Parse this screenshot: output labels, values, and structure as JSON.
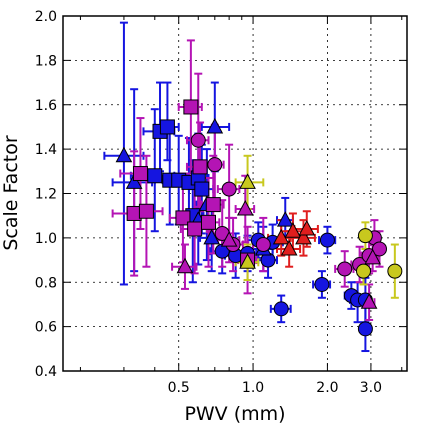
{
  "chart_data": {
    "type": "scatter",
    "title": "",
    "xlabel": "PWV (mm)",
    "ylabel": "Scale Factor",
    "xscale": "log",
    "xlim": [
      0.17,
      4.2
    ],
    "ylim": [
      0.4,
      2.0
    ],
    "xticks": [
      {
        "value": 0.5,
        "label": "0.5"
      },
      {
        "value": 1.0,
        "label": "1.0"
      },
      {
        "value": 2.0,
        "label": "2.0"
      },
      {
        "value": 3.0,
        "label": "3.0"
      }
    ],
    "yticks": [
      {
        "value": 0.4,
        "label": "0.4"
      },
      {
        "value": 0.6,
        "label": "0.6"
      },
      {
        "value": 0.8,
        "label": "0.8"
      },
      {
        "value": 1.0,
        "label": "1.0"
      },
      {
        "value": 1.2,
        "label": "1.2"
      },
      {
        "value": 1.4,
        "label": "1.4"
      },
      {
        "value": 1.6,
        "label": "1.6"
      },
      {
        "value": 1.8,
        "label": "1.8"
      },
      {
        "value": 2.0,
        "label": "2.0"
      }
    ],
    "grid": true,
    "legend": "none",
    "colors": {
      "blue": "#1515e0",
      "magenta": "#b414b4",
      "red": "#e01e1e",
      "yellow": "#c8c81e",
      "edge": "#000000"
    },
    "series": [
      {
        "color_key": "blue",
        "points": [
          {
            "x": 0.42,
            "y": 1.48,
            "marker": "square",
            "xerr": [
              0.06,
              0.06
            ],
            "yerr": [
              0.18,
              0.22
            ]
          },
          {
            "x": 0.45,
            "y": 1.5,
            "marker": "square",
            "xerr": [
              0.05,
              0.05
            ],
            "yerr": [
              0.15,
              0.2
            ]
          },
          {
            "x": 0.4,
            "y": 1.28,
            "marker": "square",
            "xerr": [
              0.08,
              0.08
            ],
            "yerr": [
              0.25,
              0.3
            ]
          },
          {
            "x": 0.46,
            "y": 1.26,
            "marker": "square",
            "xerr": [
              0.06,
              0.06
            ],
            "yerr": [
              0.2,
              0.25
            ]
          },
          {
            "x": 0.5,
            "y": 1.26,
            "marker": "square",
            "xerr": [
              0.07,
              0.07
            ],
            "yerr": [
              0.2,
              0.2
            ]
          },
          {
            "x": 0.55,
            "y": 1.25,
            "marker": "square",
            "xerr": [
              0.06,
              0.06
            ],
            "yerr": [
              0.18,
              0.2
            ]
          },
          {
            "x": 0.6,
            "y": 1.27,
            "marker": "square",
            "xerr": [
              0.06,
              0.06
            ],
            "yerr": [
              0.2,
              0.2
            ]
          },
          {
            "x": 0.62,
            "y": 1.22,
            "marker": "square",
            "xerr": [
              0.07,
              0.07
            ],
            "yerr": [
              0.2,
              0.2
            ]
          },
          {
            "x": 0.57,
            "y": 1.1,
            "marker": "square",
            "xerr": [
              0.06,
              0.06
            ],
            "yerr": [
              0.3,
              0.25
            ]
          },
          {
            "x": 0.3,
            "y": 1.37,
            "marker": "triangle",
            "xerr": [
              0.05,
              0.06
            ],
            "yerr": [
              0.58,
              0.6
            ]
          },
          {
            "x": 0.33,
            "y": 1.25,
            "marker": "triangle",
            "xerr": [
              0.06,
              0.06
            ],
            "yerr": [
              0.4,
              0.42
            ]
          },
          {
            "x": 0.7,
            "y": 1.5,
            "marker": "triangle",
            "xerr": [
              0.08,
              0.1
            ],
            "yerr": [
              0.2,
              0.2
            ]
          },
          {
            "x": 0.65,
            "y": 1.15,
            "marker": "triangle",
            "xerr": [
              0.06,
              0.06
            ],
            "yerr": [
              0.25,
              0.25
            ]
          },
          {
            "x": 0.6,
            "y": 1.08,
            "marker": "triangle",
            "xerr": [
              0.06,
              0.06
            ],
            "yerr": [
              0.2,
              0.2
            ]
          },
          {
            "x": 0.68,
            "y": 1.0,
            "marker": "triangle",
            "xerr": [
              0.07,
              0.07
            ],
            "yerr": [
              0.15,
              0.15
            ]
          },
          {
            "x": 0.75,
            "y": 0.94,
            "marker": "circle",
            "xerr": [
              0.08,
              0.08
            ],
            "yerr": [
              0.1,
              0.1
            ]
          },
          {
            "x": 0.85,
            "y": 0.92,
            "marker": "circle",
            "xerr": [
              0.08,
              0.08
            ],
            "yerr": [
              0.1,
              0.1
            ]
          },
          {
            "x": 0.95,
            "y": 0.93,
            "marker": "circle",
            "xerr": [
              0.08,
              0.08
            ],
            "yerr": [
              0.08,
              0.08
            ]
          },
          {
            "x": 1.05,
            "y": 0.99,
            "marker": "circle",
            "xerr": [
              0.1,
              0.1
            ],
            "yerr": [
              0.08,
              0.08
            ]
          },
          {
            "x": 1.2,
            "y": 0.98,
            "marker": "circle",
            "xerr": [
              0.12,
              0.12
            ],
            "yerr": [
              0.08,
              0.08
            ]
          },
          {
            "x": 1.15,
            "y": 0.9,
            "marker": "circle",
            "xerr": [
              0.1,
              0.1
            ],
            "yerr": [
              0.08,
              0.08
            ]
          },
          {
            "x": 1.3,
            "y": 0.68,
            "marker": "circle",
            "xerr": [
              0.12,
              0.12
            ],
            "yerr": [
              0.06,
              0.06
            ]
          },
          {
            "x": 1.35,
            "y": 1.08,
            "marker": "triangle",
            "xerr": [
              0.1,
              0.1
            ],
            "yerr": [
              0.1,
              0.1
            ]
          },
          {
            "x": 1.1,
            "y": 0.95,
            "marker": "triangle",
            "xerr": [
              0.1,
              0.1
            ],
            "yerr": [
              0.1,
              0.1
            ]
          },
          {
            "x": 2.0,
            "y": 0.99,
            "marker": "circle",
            "xerr": [
              0.15,
              0.15
            ],
            "yerr": [
              0.06,
              0.06
            ]
          },
          {
            "x": 1.9,
            "y": 0.79,
            "marker": "circle",
            "xerr": [
              0.15,
              0.15
            ],
            "yerr": [
              0.06,
              0.06
            ]
          },
          {
            "x": 2.5,
            "y": 0.74,
            "marker": "circle",
            "xerr": [
              0.15,
              0.15
            ],
            "yerr": [
              0.06,
              0.06
            ]
          },
          {
            "x": 2.65,
            "y": 0.72,
            "marker": "circle",
            "xerr": [
              0.18,
              0.18
            ],
            "yerr": [
              0.1,
              0.08
            ]
          },
          {
            "x": 2.85,
            "y": 0.72,
            "marker": "circle",
            "xerr": [
              0.15,
              0.15
            ],
            "yerr": [
              0.1,
              0.1
            ]
          },
          {
            "x": 2.85,
            "y": 0.59,
            "marker": "circle",
            "xerr": [
              0.1,
              0.1
            ],
            "yerr": [
              0.1,
              0.1
            ]
          }
        ]
      },
      {
        "color_key": "magenta",
        "points": [
          {
            "x": 0.56,
            "y": 1.59,
            "marker": "square",
            "xerr": [
              0.06,
              0.06
            ],
            "yerr": [
              0.3,
              0.3
            ]
          },
          {
            "x": 0.6,
            "y": 1.44,
            "marker": "circle",
            "xerr": [
              0.06,
              0.06
            ],
            "yerr": [
              0.3,
              0.3
            ]
          },
          {
            "x": 0.61,
            "y": 1.32,
            "marker": "square",
            "xerr": [
              0.07,
              0.07
            ],
            "yerr": [
              0.2,
              0.2
            ]
          },
          {
            "x": 0.7,
            "y": 1.33,
            "marker": "circle",
            "xerr": [
              0.06,
              0.06
            ],
            "yerr": [
              0.18,
              0.18
            ]
          },
          {
            "x": 0.35,
            "y": 1.29,
            "marker": "square",
            "xerr": [
              0.06,
              0.06
            ],
            "yerr": [
              0.25,
              0.25
            ]
          },
          {
            "x": 0.33,
            "y": 1.11,
            "marker": "square",
            "xerr": [
              0.06,
              0.06
            ],
            "yerr": [
              0.28,
              0.28
            ]
          },
          {
            "x": 0.37,
            "y": 1.12,
            "marker": "square",
            "xerr": [
              0.06,
              0.06
            ],
            "yerr": [
              0.25,
              0.25
            ]
          },
          {
            "x": 0.52,
            "y": 1.09,
            "marker": "square",
            "xerr": [
              0.06,
              0.06
            ],
            "yerr": [
              0.2,
              0.2
            ]
          },
          {
            "x": 0.58,
            "y": 1.04,
            "marker": "square",
            "xerr": [
              0.07,
              0.07
            ],
            "yerr": [
              0.2,
              0.2
            ]
          },
          {
            "x": 0.66,
            "y": 1.07,
            "marker": "square",
            "xerr": [
              0.07,
              0.07
            ],
            "yerr": [
              0.2,
              0.2
            ]
          },
          {
            "x": 0.69,
            "y": 1.15,
            "marker": "square",
            "xerr": [
              0.07,
              0.07
            ],
            "yerr": [
              0.22,
              0.22
            ]
          },
          {
            "x": 0.8,
            "y": 1.22,
            "marker": "circle",
            "xerr": [
              0.08,
              0.08
            ],
            "yerr": [
              0.2,
              0.2
            ]
          },
          {
            "x": 0.75,
            "y": 1.02,
            "marker": "circle",
            "xerr": [
              0.08,
              0.08
            ],
            "yerr": [
              0.15,
              0.15
            ]
          },
          {
            "x": 0.83,
            "y": 0.97,
            "marker": "circle",
            "xerr": [
              0.08,
              0.08
            ],
            "yerr": [
              0.12,
              0.12
            ]
          },
          {
            "x": 0.93,
            "y": 1.13,
            "marker": "triangle",
            "xerr": [
              0.08,
              0.08
            ],
            "yerr": [
              0.15,
              0.15
            ]
          },
          {
            "x": 0.95,
            "y": 0.9,
            "marker": "square",
            "xerr": [
              0.08,
              0.08
            ],
            "yerr": [
              0.15,
              0.15
            ]
          },
          {
            "x": 0.53,
            "y": 0.87,
            "marker": "triangle",
            "xerr": [
              0.06,
              0.06
            ],
            "yerr": [
              0.1,
              0.1
            ]
          },
          {
            "x": 1.1,
            "y": 0.97,
            "marker": "circle",
            "xerr": [
              0.1,
              0.1
            ],
            "yerr": [
              0.12,
              0.12
            ]
          },
          {
            "x": 0.8,
            "y": 0.99,
            "marker": "triangle",
            "xerr": [
              0.08,
              0.08
            ],
            "yerr": [
              0.1,
              0.1
            ]
          },
          {
            "x": 2.35,
            "y": 0.86,
            "marker": "circle",
            "xerr": [
              0.2,
              0.2
            ],
            "yerr": [
              0.08,
              0.08
            ]
          },
          {
            "x": 2.7,
            "y": 0.88,
            "marker": "circle",
            "xerr": [
              0.2,
              0.2
            ],
            "yerr": [
              0.08,
              0.08
            ]
          },
          {
            "x": 2.95,
            "y": 0.92,
            "marker": "circle",
            "xerr": [
              0.2,
              0.2
            ],
            "yerr": [
              0.08,
              0.08
            ]
          },
          {
            "x": 3.1,
            "y": 1.0,
            "marker": "circle",
            "xerr": [
              0.15,
              0.15
            ],
            "yerr": [
              0.08,
              0.08
            ]
          },
          {
            "x": 3.25,
            "y": 0.95,
            "marker": "circle",
            "xerr": [
              0.15,
              0.15
            ],
            "yerr": [
              0.08,
              0.08
            ]
          },
          {
            "x": 3.05,
            "y": 0.91,
            "marker": "triangle",
            "xerr": [
              0.15,
              0.15
            ],
            "yerr": [
              0.06,
              0.06
            ]
          },
          {
            "x": 2.95,
            "y": 0.71,
            "marker": "triangle",
            "xerr": [
              0.15,
              0.15
            ],
            "yerr": [
              0.08,
              0.08
            ]
          }
        ]
      },
      {
        "color_key": "red",
        "points": [
          {
            "x": 1.3,
            "y": 1.0,
            "marker": "triangle",
            "xerr": [
              0.15,
              0.15
            ],
            "yerr": [
              0.08,
              0.08
            ]
          },
          {
            "x": 1.4,
            "y": 0.95,
            "marker": "triangle",
            "xerr": [
              0.15,
              0.15
            ],
            "yerr": [
              0.08,
              0.08
            ]
          },
          {
            "x": 1.45,
            "y": 1.03,
            "marker": "triangle",
            "xerr": [
              0.15,
              0.15
            ],
            "yerr": [
              0.08,
              0.08
            ]
          },
          {
            "x": 1.6,
            "y": 1.0,
            "marker": "triangle",
            "xerr": [
              0.18,
              0.18
            ],
            "yerr": [
              0.08,
              0.08
            ]
          },
          {
            "x": 1.65,
            "y": 1.04,
            "marker": "triangle",
            "xerr": [
              0.18,
              0.18
            ],
            "yerr": [
              0.08,
              0.08
            ]
          }
        ]
      },
      {
        "color_key": "yellow",
        "points": [
          {
            "x": 0.95,
            "y": 1.25,
            "marker": "triangle",
            "xerr": [
              0.1,
              0.15
            ],
            "yerr": [
              0.12,
              0.12
            ]
          },
          {
            "x": 0.95,
            "y": 0.89,
            "marker": "triangle",
            "xerr": [
              0.1,
              0.1
            ],
            "yerr": [
              0.08,
              0.08
            ]
          },
          {
            "x": 2.85,
            "y": 1.01,
            "marker": "circle",
            "xerr": [
              0.15,
              0.15
            ],
            "yerr": [
              0.06,
              0.06
            ]
          },
          {
            "x": 2.8,
            "y": 0.85,
            "marker": "circle",
            "xerr": [
              0.15,
              0.15
            ],
            "yerr": [
              0.06,
              0.06
            ]
          },
          {
            "x": 3.75,
            "y": 0.85,
            "marker": "circle",
            "xerr": [
              0.2,
              0.2
            ],
            "yerr": [
              0.12,
              0.12
            ]
          }
        ]
      }
    ]
  }
}
